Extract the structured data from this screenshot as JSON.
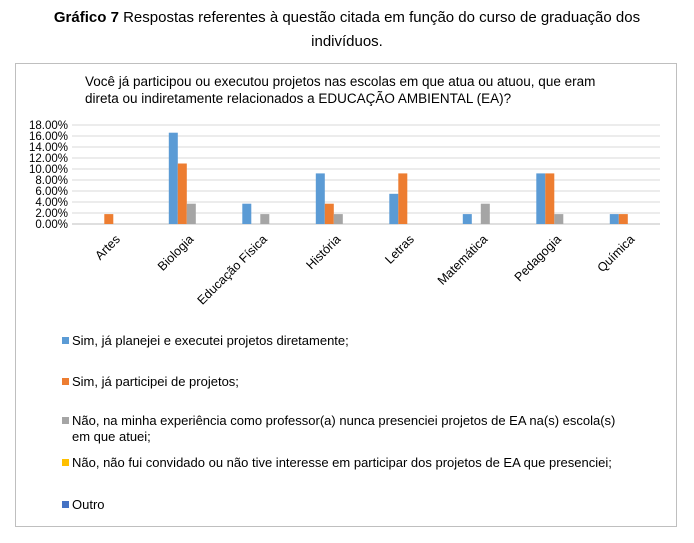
{
  "caption": {
    "prefix": "Gráfico 7",
    "line1": " Respostas referentes à questão citada em função do curso de graduação dos",
    "line2": "indivíduos."
  },
  "chart_data": {
    "type": "bar",
    "title": "Você já participou ou executou projetos nas escolas em que atua ou atuou, que eram direta ou indiretamente relacionados a EDUCAÇÃO AMBIENTAL (EA)?",
    "categories": [
      "Artes",
      "Biologia",
      "Educação Física",
      "História",
      "Letras",
      "Matemática",
      "Pedagogia",
      "Química"
    ],
    "y_ticks": [
      "0.00%",
      "2.00%",
      "4.00%",
      "6.00%",
      "8.00%",
      "10.00%",
      "12.00%",
      "14.00%",
      "16.00%",
      "18.00%"
    ],
    "ylim": [
      0,
      18
    ],
    "y_unit": "%",
    "grid": true,
    "legend_position": "bottom",
    "series": [
      {
        "name": "Sim, já planejei e executei projetos diretamente;",
        "color": "#5b9bd5",
        "values": [
          0,
          16.6,
          3.7,
          9.2,
          5.5,
          1.8,
          9.2,
          1.8
        ]
      },
      {
        "name": "Sim, já participei de projetos;",
        "color": "#ed7d31",
        "values": [
          1.8,
          11.0,
          0,
          3.7,
          9.2,
          0,
          9.2,
          1.8
        ]
      },
      {
        "name": "Não, na minha experiência como professor(a) nunca presenciei projetos de EA na(s) escola(s) em que atuei;",
        "color": "#a5a5a5",
        "values": [
          0,
          3.7,
          1.8,
          1.8,
          0,
          3.7,
          1.8,
          0
        ]
      },
      {
        "name": "Não, não fui convidado ou não tive interesse em participar dos projetos de EA que presenciei;",
        "color": "#ffc000",
        "values": [
          0,
          0,
          0,
          0,
          0,
          0,
          0,
          0
        ]
      },
      {
        "name": "Outro",
        "color": "#4472c4",
        "values": [
          0,
          0,
          0,
          0,
          0,
          0,
          0,
          0
        ]
      }
    ]
  }
}
